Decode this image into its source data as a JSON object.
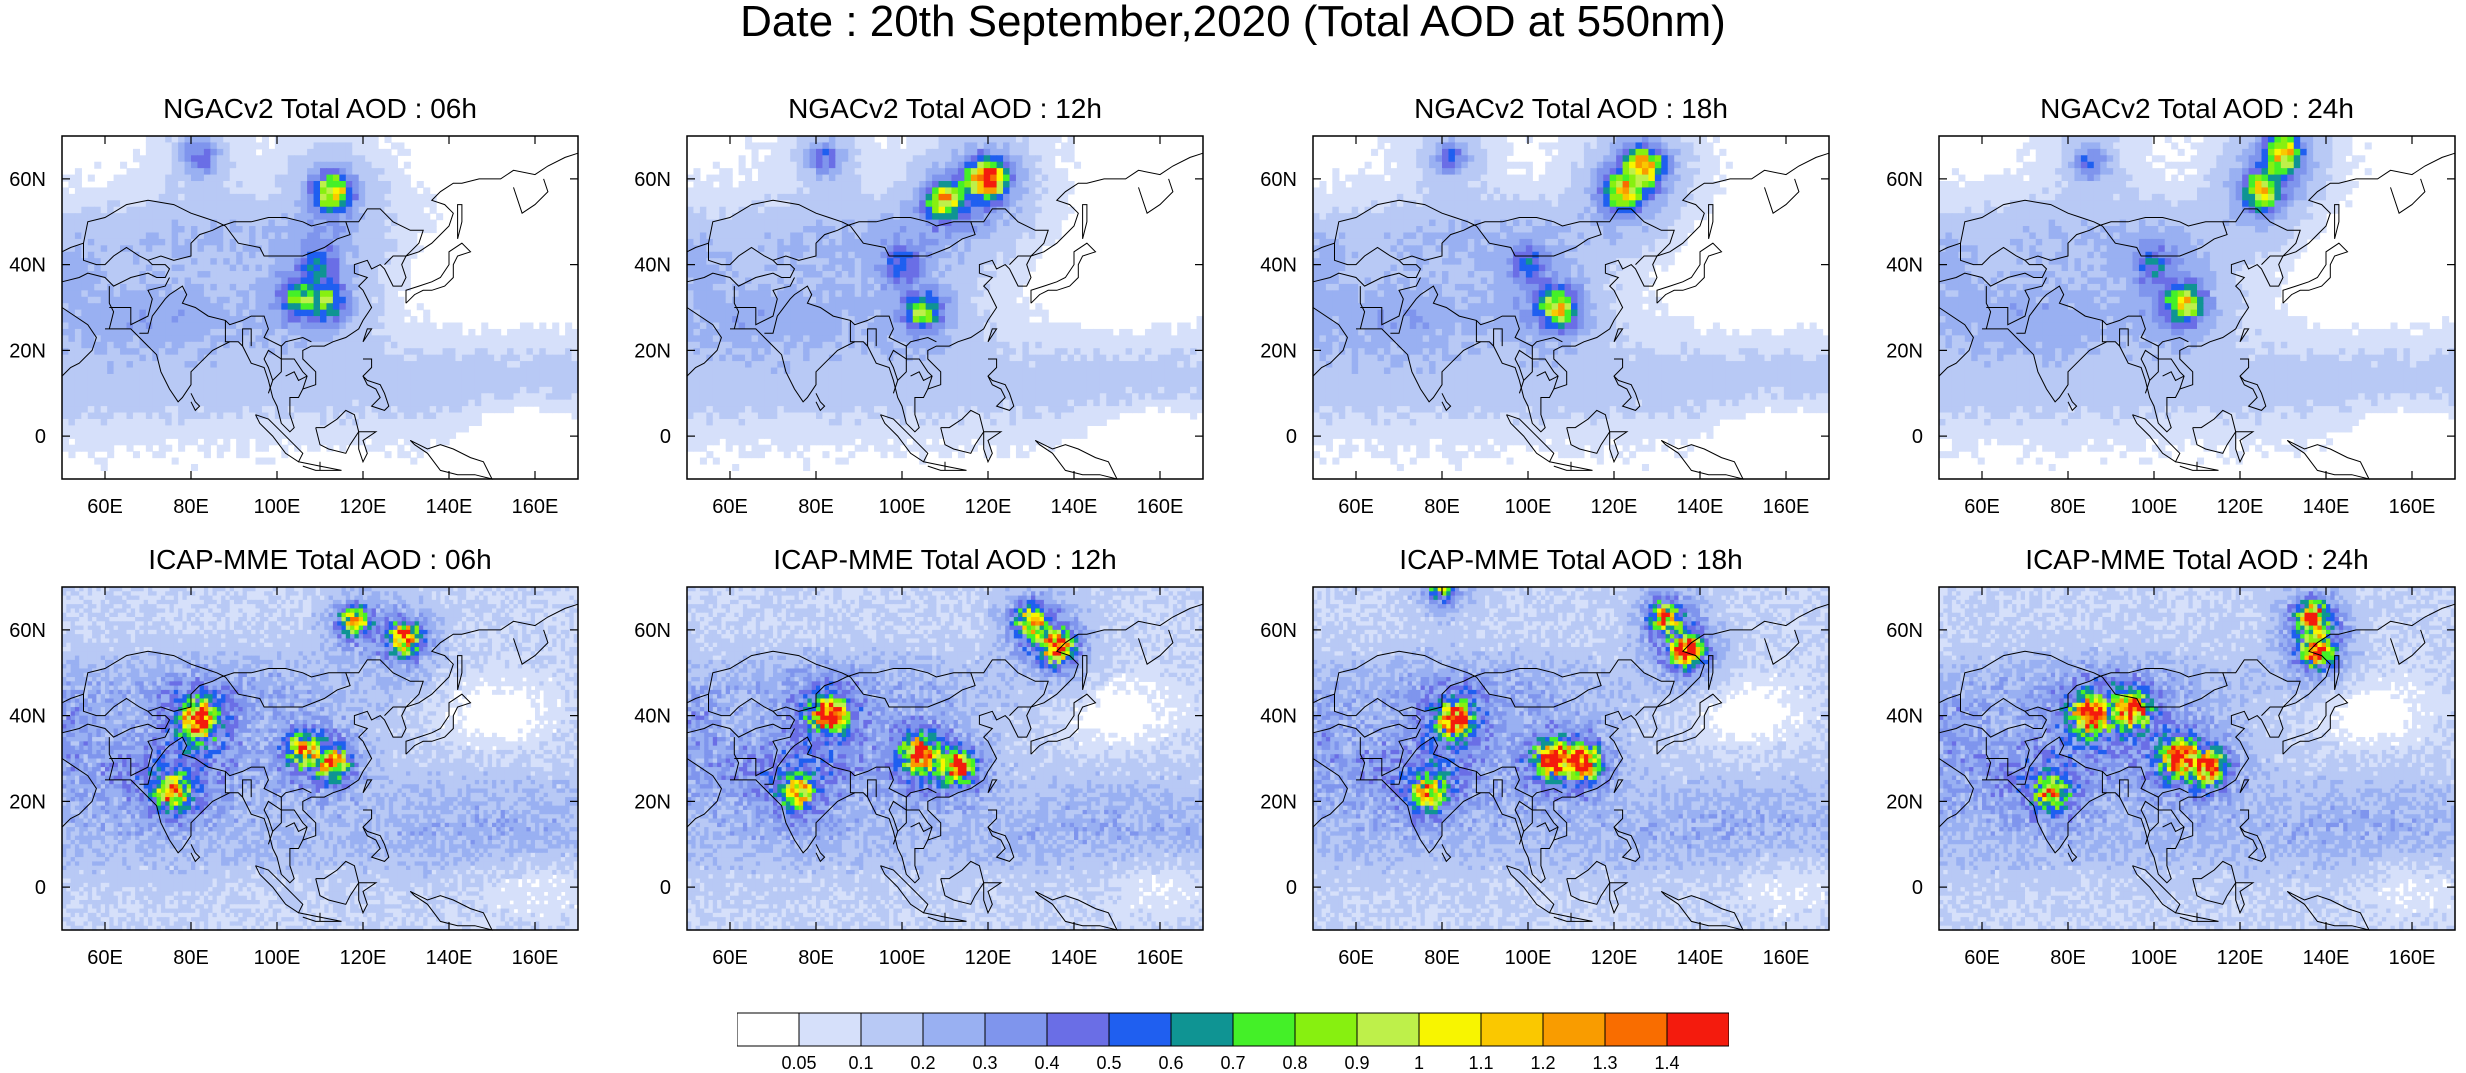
{
  "title": "Date : 20th September,2020 (Total AOD at 550nm)",
  "panels": [
    {
      "title": "NGACv2 Total AOD : 06h",
      "model": "NGACv2",
      "hour": "06h",
      "hotspots": [
        {
          "lon": 113,
          "lat": 57,
          "aod": 0.9
        },
        {
          "lon": 112,
          "lat": 31,
          "aod": 0.5
        },
        {
          "lon": 105,
          "lat": 32,
          "aod": 0.45
        },
        {
          "lon": 82,
          "lat": 65,
          "aod": 0.35
        },
        {
          "lon": 110,
          "lat": 40,
          "aod": 0.3
        }
      ]
    },
    {
      "title": "NGACv2 Total AOD : 12h",
      "model": "NGACv2",
      "hour": "12h",
      "hotspots": [
        {
          "lon": 120,
          "lat": 60,
          "aod": 1.2
        },
        {
          "lon": 110,
          "lat": 55,
          "aod": 0.8
        },
        {
          "lon": 105,
          "lat": 29,
          "aod": 0.6
        },
        {
          "lon": 82,
          "lat": 65,
          "aod": 0.35
        },
        {
          "lon": 100,
          "lat": 40,
          "aod": 0.3
        }
      ]
    },
    {
      "title": "NGACv2 Total AOD : 18h",
      "model": "NGACv2",
      "hour": "18h",
      "hotspots": [
        {
          "lon": 127,
          "lat": 63,
          "aod": 0.9
        },
        {
          "lon": 122,
          "lat": 57,
          "aod": 0.8
        },
        {
          "lon": 107,
          "lat": 30,
          "aod": 0.8
        },
        {
          "lon": 82,
          "lat": 65,
          "aod": 0.35
        },
        {
          "lon": 100,
          "lat": 40,
          "aod": 0.3
        }
      ]
    },
    {
      "title": "NGACv2 Total AOD : 24h",
      "model": "NGACv2",
      "hour": "24h",
      "hotspots": [
        {
          "lon": 130,
          "lat": 66,
          "aod": 0.9
        },
        {
          "lon": 125,
          "lat": 57,
          "aod": 0.8
        },
        {
          "lon": 107,
          "lat": 31,
          "aod": 0.8
        },
        {
          "lon": 85,
          "lat": 64,
          "aod": 0.35
        },
        {
          "lon": 100,
          "lat": 40,
          "aod": 0.3
        }
      ]
    },
    {
      "title": "ICAP-MME Total AOD : 06h",
      "model": "ICAP-MME",
      "hour": "06h",
      "hotspots": [
        {
          "lon": 82,
          "lat": 39,
          "aod": 1.4
        },
        {
          "lon": 76,
          "lat": 22,
          "aod": 0.9
        },
        {
          "lon": 113,
          "lat": 29,
          "aod": 0.9
        },
        {
          "lon": 106,
          "lat": 32,
          "aod": 0.8
        },
        {
          "lon": 130,
          "lat": 58,
          "aod": 1.1
        },
        {
          "lon": 118,
          "lat": 62,
          "aod": 0.8
        }
      ]
    },
    {
      "title": "ICAP-MME Total AOD : 12h",
      "model": "ICAP-MME",
      "hour": "12h",
      "hotspots": [
        {
          "lon": 83,
          "lat": 40,
          "aod": 1.3
        },
        {
          "lon": 76,
          "lat": 22,
          "aod": 0.8
        },
        {
          "lon": 104,
          "lat": 31,
          "aod": 1.3
        },
        {
          "lon": 113,
          "lat": 28,
          "aod": 1.0
        },
        {
          "lon": 136,
          "lat": 56,
          "aod": 1.2
        },
        {
          "lon": 130,
          "lat": 62,
          "aod": 0.9
        }
      ]
    },
    {
      "title": "ICAP-MME Total AOD : 18h",
      "model": "ICAP-MME",
      "hour": "18h",
      "hotspots": [
        {
          "lon": 83,
          "lat": 39,
          "aod": 1.2
        },
        {
          "lon": 77,
          "lat": 22,
          "aod": 0.8
        },
        {
          "lon": 106,
          "lat": 30,
          "aod": 1.3
        },
        {
          "lon": 113,
          "lat": 29,
          "aod": 1.1
        },
        {
          "lon": 137,
          "lat": 55,
          "aod": 1.2
        },
        {
          "lon": 132,
          "lat": 63,
          "aod": 0.9
        },
        {
          "lon": 80,
          "lat": 70,
          "aod": 0.6
        }
      ]
    },
    {
      "title": "ICAP-MME Total AOD : 24h",
      "model": "ICAP-MME",
      "hour": "24h",
      "hotspots": [
        {
          "lon": 85,
          "lat": 40,
          "aod": 1.3
        },
        {
          "lon": 95,
          "lat": 41,
          "aod": 1.1
        },
        {
          "lon": 76,
          "lat": 22,
          "aod": 0.8
        },
        {
          "lon": 106,
          "lat": 30,
          "aod": 1.3
        },
        {
          "lon": 113,
          "lat": 28,
          "aod": 1.0
        },
        {
          "lon": 138,
          "lat": 55,
          "aod": 1.1
        },
        {
          "lon": 137,
          "lat": 63,
          "aod": 1.0
        }
      ]
    }
  ],
  "axes": {
    "lon_range": [
      50,
      170
    ],
    "lat_range": [
      -10,
      70
    ],
    "lon_ticks": [
      "60E",
      "80E",
      "100E",
      "120E",
      "140E",
      "160E"
    ],
    "lon_tick_values": [
      60,
      80,
      100,
      120,
      140,
      160
    ],
    "lat_ticks": [
      "60N",
      "40N",
      "20N",
      "0"
    ],
    "lat_tick_values": [
      60,
      40,
      20,
      0
    ]
  },
  "colorbar": {
    "labels": [
      "0.05",
      "0.1",
      "0.2",
      "0.3",
      "0.4",
      "0.5",
      "0.6",
      "0.7",
      "0.8",
      "0.9",
      "1",
      "1.1",
      "1.2",
      "1.3",
      "1.4"
    ],
    "thresholds": [
      0.05,
      0.1,
      0.2,
      0.3,
      0.4,
      0.5,
      0.6,
      0.7,
      0.8,
      0.9,
      1.0,
      1.1,
      1.2,
      1.3,
      1.4
    ],
    "colors": [
      "#ffffff",
      "#d6e0fa",
      "#b8c9f5",
      "#99b0f2",
      "#7f95ed",
      "#6a6ee6",
      "#1f5ff0",
      "#0f9493",
      "#44f028",
      "#87f010",
      "#bef04a",
      "#f8f500",
      "#fac800",
      "#f99c00",
      "#f96d00",
      "#f41b0d"
    ]
  }
}
